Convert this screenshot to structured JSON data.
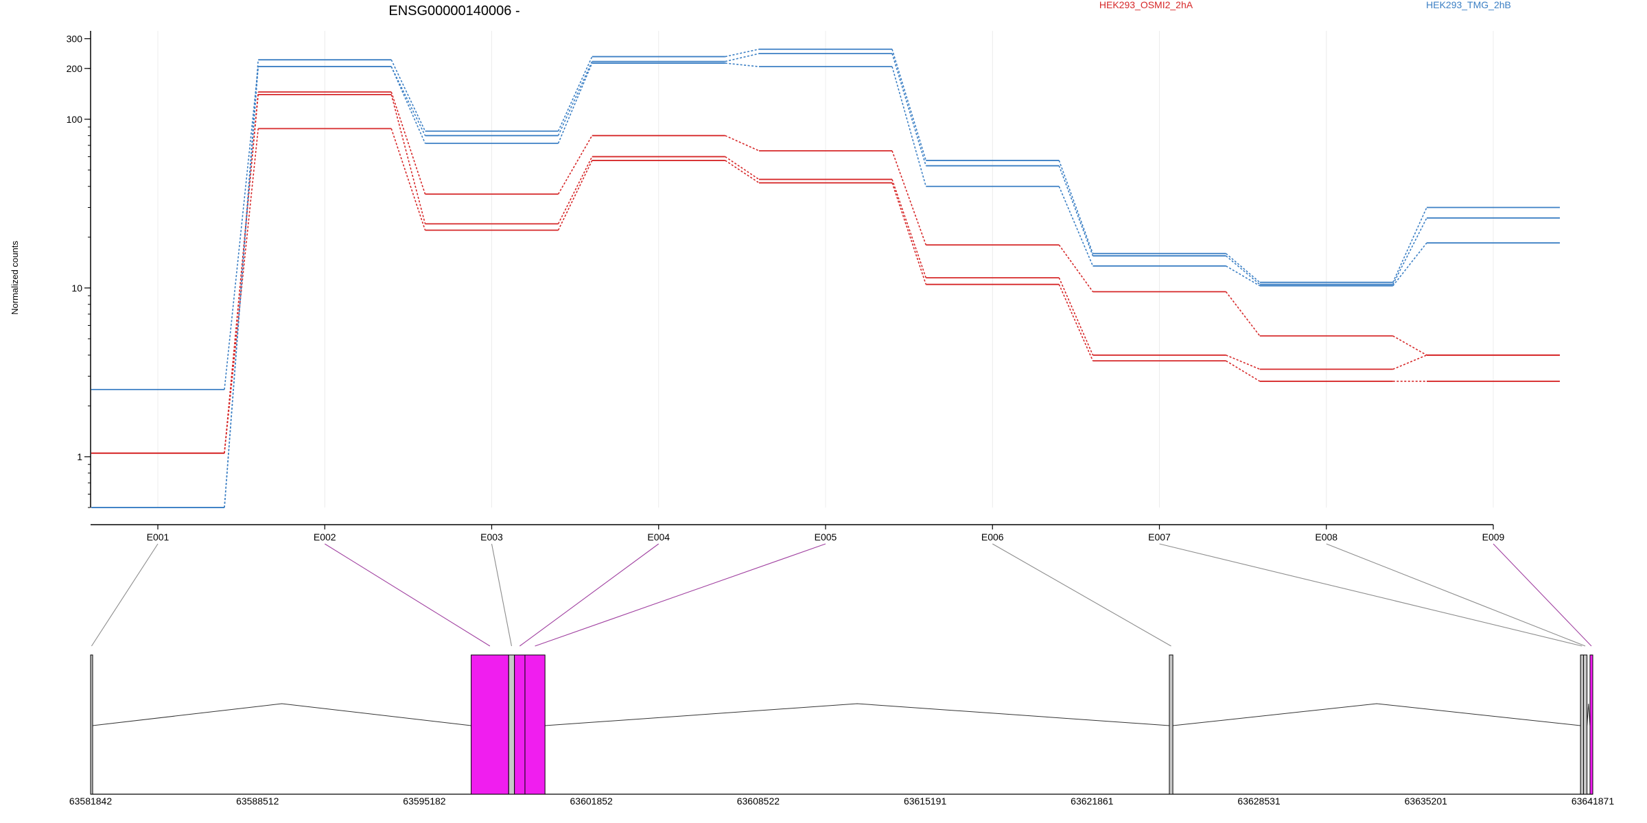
{
  "chart_data": {
    "type": "line",
    "title": "ENSG00000140006 -",
    "ylabel": "Normalized counts",
    "y_scale": "log",
    "ylim": [
      0.5,
      350
    ],
    "y_ticks": [
      1,
      10,
      100,
      200,
      300
    ],
    "y_tick_labels": [
      "1",
      "10",
      "100",
      "200",
      "300"
    ],
    "categories": [
      "E001",
      "E002",
      "E003",
      "E004",
      "E005",
      "E006",
      "E007",
      "E008",
      "E009"
    ],
    "groups": [
      {
        "name": "HEK293_OSMI2_2hA",
        "color": "#d62728"
      },
      {
        "name": "HEK293_TMG_2hB",
        "color": "#3b7fc4"
      }
    ],
    "series": [
      {
        "group": "HEK293_OSMI2_2hA",
        "values": [
          1.05,
          145,
          36,
          80,
          65,
          18,
          9.5,
          5.2,
          4.0
        ]
      },
      {
        "group": "HEK293_OSMI2_2hA",
        "values": [
          1.05,
          140,
          24,
          60,
          44,
          11.5,
          4.0,
          3.3,
          4.0
        ]
      },
      {
        "group": "HEK293_OSMI2_2hA",
        "values": [
          1.05,
          88,
          22,
          57,
          42,
          10.5,
          3.7,
          2.8,
          2.8
        ]
      },
      {
        "group": "HEK293_TMG_2hB",
        "values": [
          0.5,
          225,
          85,
          235,
          260,
          57,
          16,
          10.8,
          30
        ]
      },
      {
        "group": "HEK293_TMG_2hB",
        "values": [
          0.5,
          205,
          80,
          220,
          245,
          53,
          15.5,
          10.5,
          26
        ]
      },
      {
        "group": "HEK293_TMG_2hB",
        "values": [
          2.5,
          205,
          72,
          215,
          205,
          40,
          13.5,
          10.3,
          18.5
        ]
      }
    ],
    "gene_track": {
      "coordinate_labels": [
        "63581842",
        "63588512",
        "63595182",
        "63601852",
        "63608522",
        "63615191",
        "63621861",
        "63628531",
        "63635201",
        "63641871"
      ],
      "start": 63581842,
      "end": 63641871,
      "exons": [
        {
          "id": "E001",
          "start": 63581842,
          "end": 63581920,
          "highlight": false
        },
        {
          "id": "E002",
          "start": 63597050,
          "end": 63598550,
          "highlight": true
        },
        {
          "id": "E003",
          "start": 63598550,
          "end": 63598780,
          "highlight": false
        },
        {
          "id": "E004",
          "start": 63598780,
          "end": 63599200,
          "highlight": true
        },
        {
          "id": "E005",
          "start": 63599200,
          "end": 63600000,
          "highlight": true
        },
        {
          "id": "E006",
          "start": 63624950,
          "end": 63625090,
          "highlight": false
        },
        {
          "id": "E007",
          "start": 63641380,
          "end": 63641500,
          "highlight": false
        },
        {
          "id": "E008",
          "start": 63641500,
          "end": 63641640,
          "highlight": false
        },
        {
          "id": "E009",
          "start": 63641760,
          "end": 63641871,
          "highlight": true
        }
      ],
      "highlight_color": "#f01eef",
      "normal_color": "#c8c8c8"
    }
  }
}
